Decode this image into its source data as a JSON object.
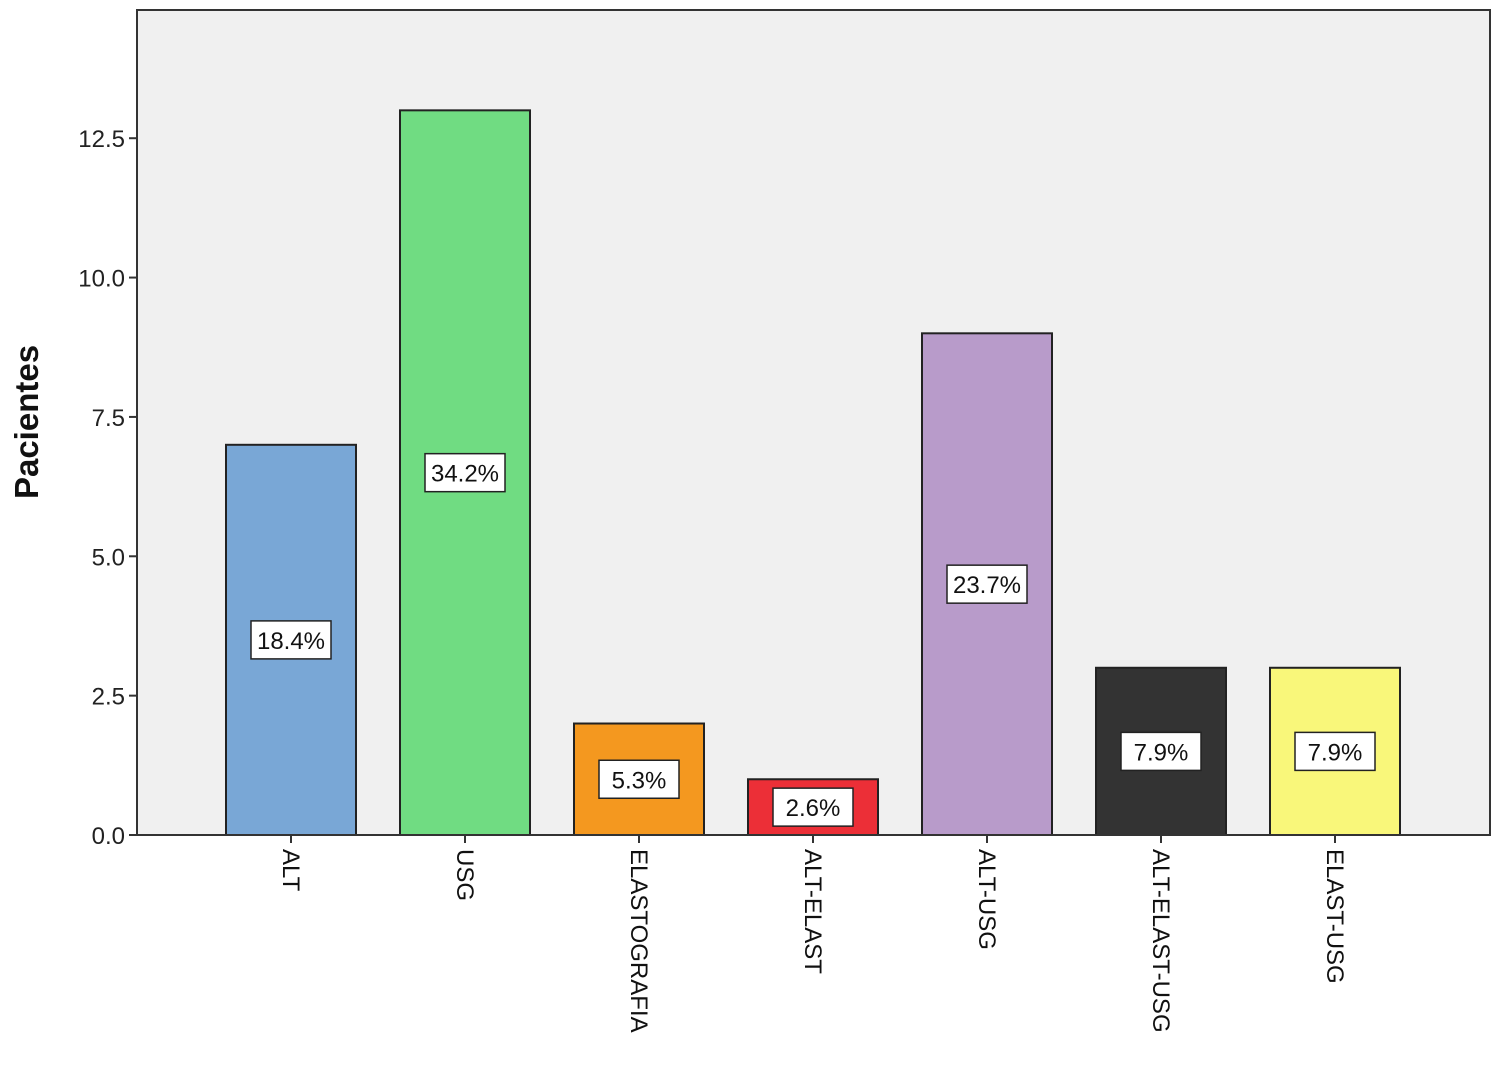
{
  "chart_data": {
    "type": "bar",
    "title": "",
    "xlabel": "",
    "ylabel": "Pacientes",
    "ylim": [
      0,
      14.8
    ],
    "yticks": [
      "0.0",
      "2.5",
      "5.0",
      "7.5",
      "10.0",
      "12.5"
    ],
    "ytick_values": [
      0,
      2.5,
      5,
      7.5,
      10,
      12.5
    ],
    "grid": false,
    "background": "#f0f0f0",
    "categories": [
      "ALT",
      "USG",
      "ELASTOGRAFIA",
      "ALT-ELAST",
      "ALT-USG",
      "ALT-ELAST-USG",
      "ELAST-USG"
    ],
    "values": [
      7,
      13,
      2,
      1,
      9,
      3,
      3
    ],
    "percent_labels": [
      "18.4%",
      "34.2%",
      "5.3%",
      "2.6%",
      "23.7%",
      "7.9%",
      "7.9%"
    ],
    "colors": [
      "#79a7d6",
      "#70dc82",
      "#f4981f",
      "#ec2f37",
      "#b89bca",
      "#333333",
      "#f9f77a"
    ]
  }
}
